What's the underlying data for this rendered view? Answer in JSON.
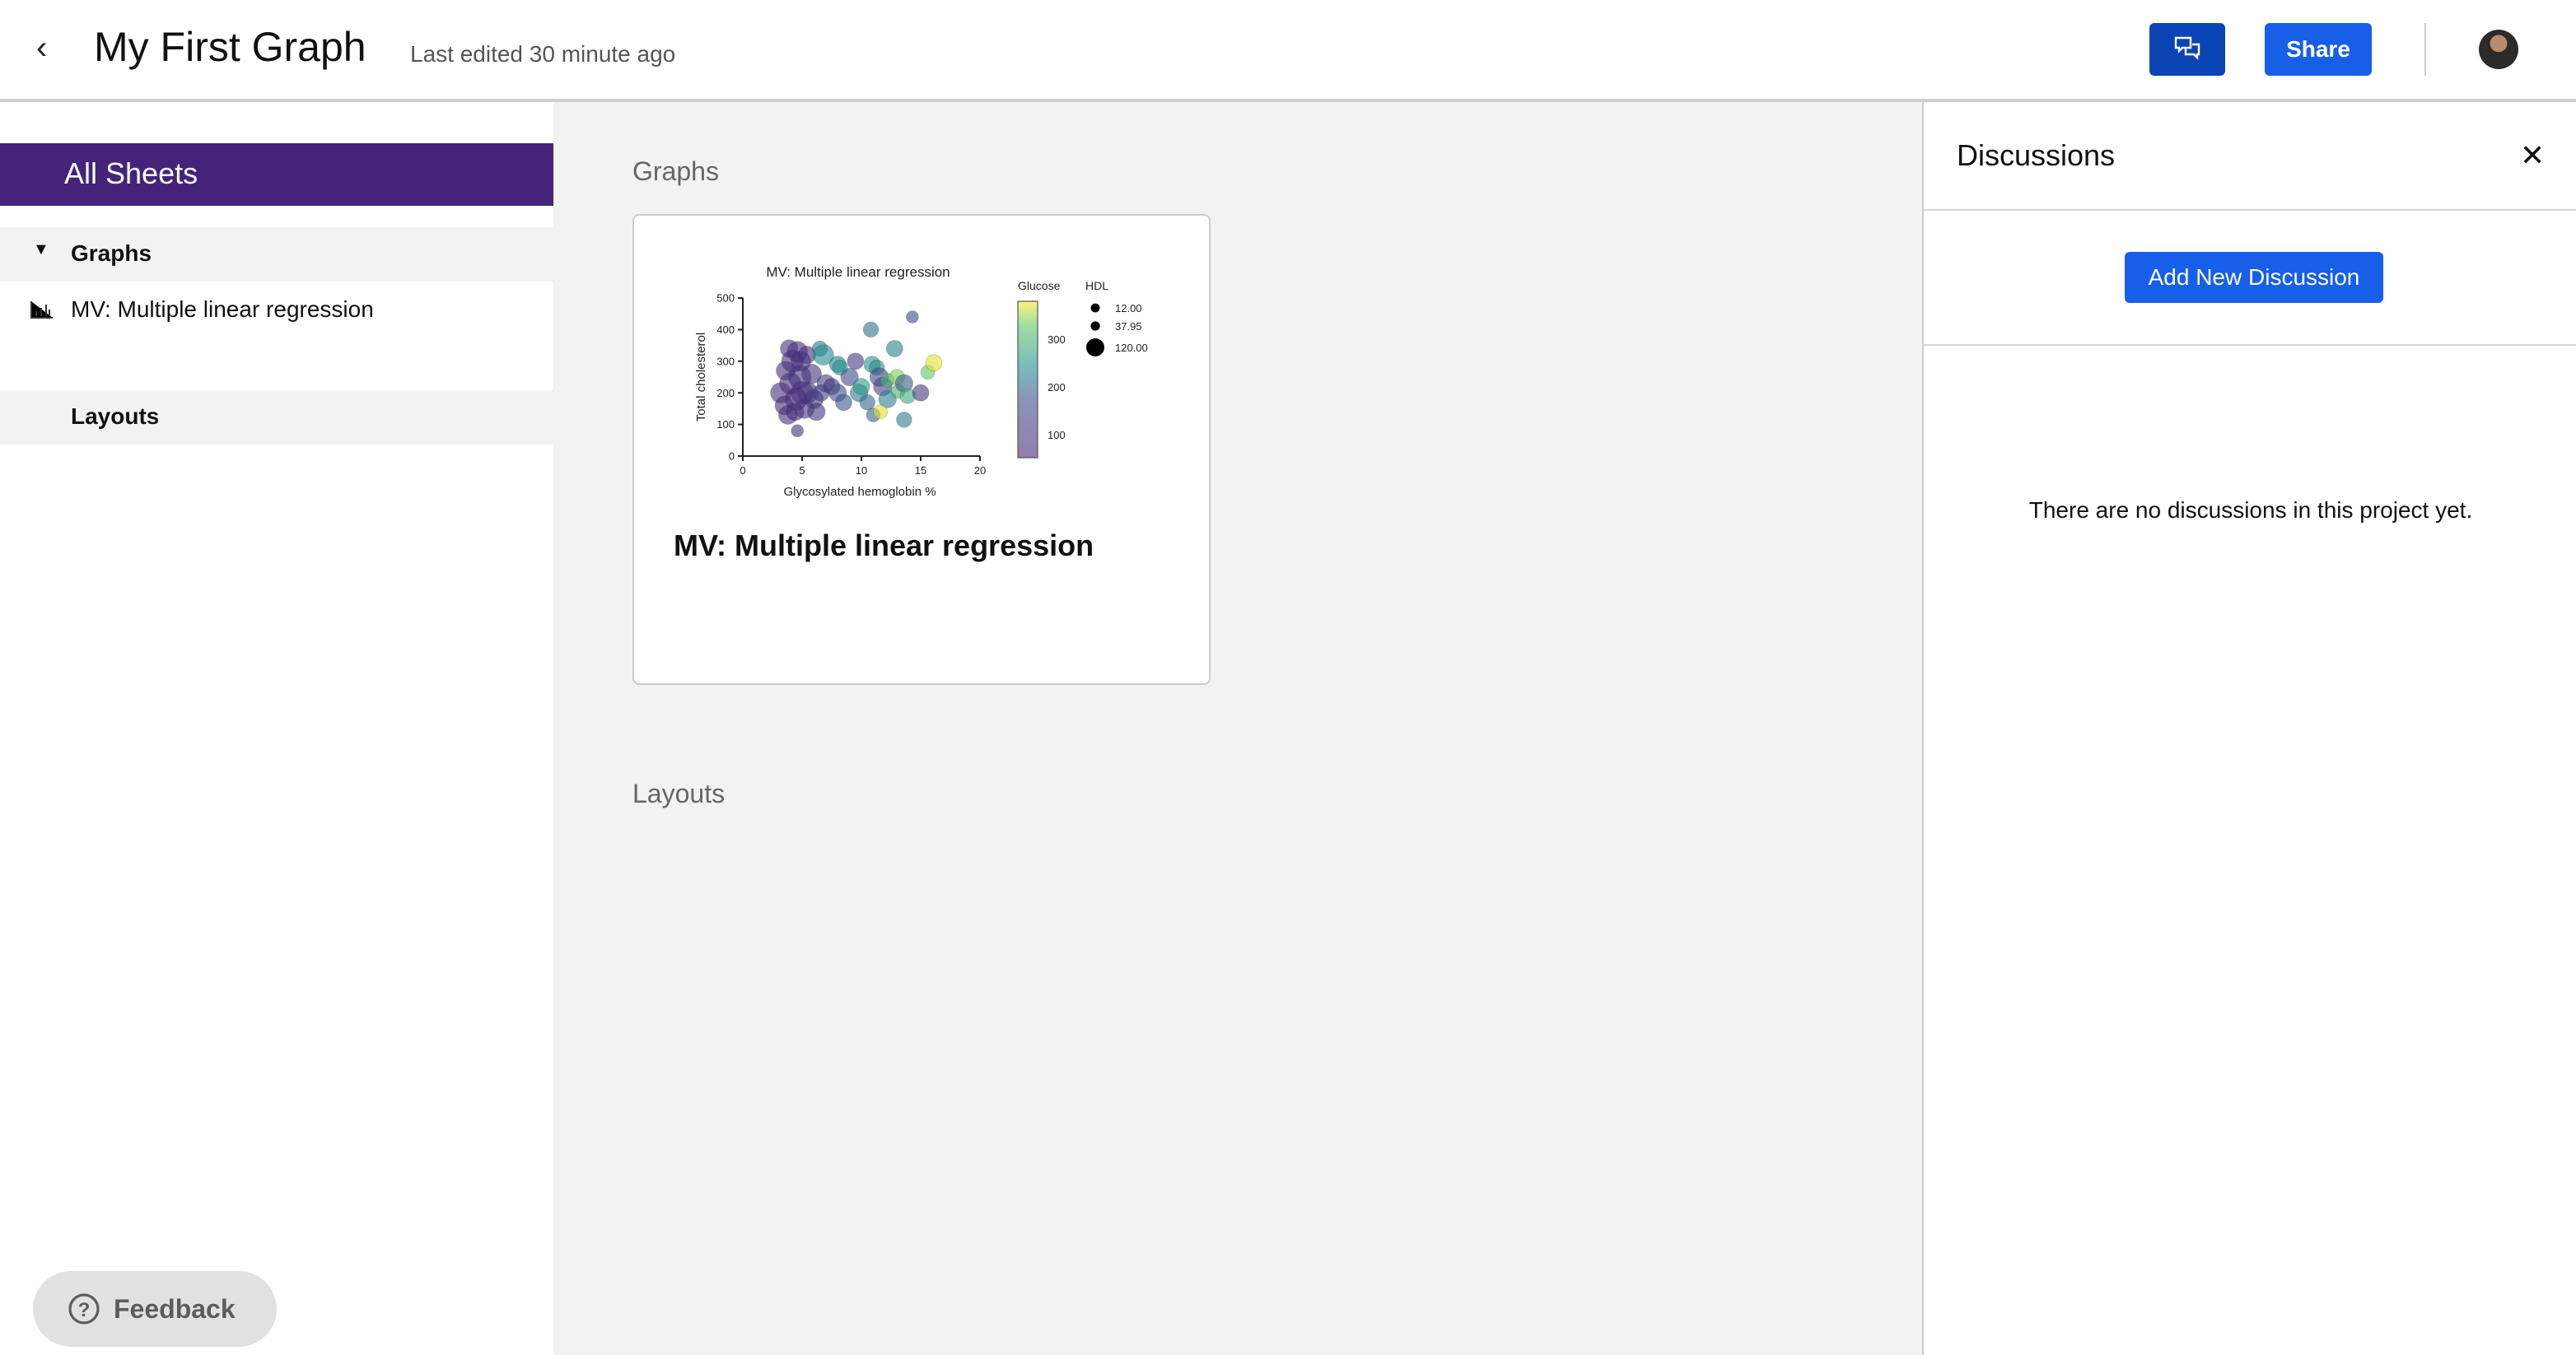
{
  "header": {
    "back_icon": "chevron-left-icon",
    "title": "My First Graph",
    "last_edited": "Last edited 30 minute ago",
    "share_label": "Share",
    "chat_icon": "chat-bubbles-icon",
    "brand_color": "#175fe9"
  },
  "sidebar": {
    "all_sheets": "All Sheets",
    "accent": "#46237a",
    "groups": [
      {
        "label": "Graphs",
        "items": [
          {
            "label": "MV: Multiple linear regression"
          }
        ]
      },
      {
        "label": "Layouts",
        "items": []
      }
    ],
    "feedback_label": "Feedback"
  },
  "main": {
    "graphs_heading": "Graphs",
    "layouts_heading": "Layouts",
    "card": {
      "title": "MV: Multiple linear regression",
      "thumbnail": {
        "title": "MV: Multiple linear regression",
        "xlabel": "Glycosylated hemoglobin %",
        "ylabel": "Total cholesterol",
        "xticks": [
          "0",
          "5",
          "10",
          "15",
          "20"
        ],
        "yticks": [
          "0",
          "100",
          "200",
          "300",
          "400",
          "500"
        ],
        "xlim": [
          0,
          20
        ],
        "ylim": [
          0,
          500
        ],
        "color_label": "Glucose",
        "color_ticks": [
          "100",
          "200",
          "300"
        ],
        "color_range": [
          52,
          379
        ],
        "size_label": "HDL",
        "size_legend": [
          "12.00",
          "37.95",
          "120.00"
        ],
        "points": [
          [
            4.6,
            80,
            80,
            20
          ],
          [
            3.2,
            200,
            70,
            90
          ],
          [
            3.5,
            160,
            75,
            70
          ],
          [
            4.0,
            230,
            80,
            100
          ],
          [
            4.2,
            300,
            70,
            110
          ],
          [
            4.6,
            330,
            75,
            90
          ],
          [
            4.8,
            250,
            85,
            120
          ],
          [
            5.0,
            200,
            70,
            120
          ],
          [
            4.5,
            180,
            65,
            110
          ],
          [
            3.8,
            130,
            80,
            70
          ],
          [
            4.4,
            140,
            70,
            60
          ],
          [
            5.2,
            150,
            90,
            80
          ],
          [
            5.5,
            200,
            100,
            90
          ],
          [
            5.8,
            260,
            85,
            80
          ],
          [
            6.0,
            180,
            95,
            70
          ],
          [
            3.6,
            270,
            80,
            70
          ],
          [
            4.9,
            300,
            75,
            80
          ],
          [
            5.4,
            320,
            90,
            60
          ],
          [
            3.9,
            340,
            85,
            60
          ],
          [
            6.2,
            140,
            100,
            60
          ],
          [
            6.6,
            200,
            130,
            50
          ],
          [
            7.0,
            230,
            120,
            60
          ],
          [
            7.5,
            220,
            110,
            50
          ],
          [
            8.0,
            200,
            170,
            60
          ],
          [
            8.5,
            170,
            180,
            50
          ],
          [
            6.5,
            340,
            220,
            40
          ],
          [
            6.8,
            320,
            240,
            90
          ],
          [
            8.0,
            290,
            230,
            50
          ],
          [
            8.2,
            280,
            250,
            40
          ],
          [
            9.0,
            250,
            170,
            60
          ],
          [
            9.5,
            300,
            110,
            50
          ],
          [
            9.8,
            200,
            220,
            60
          ],
          [
            10.0,
            220,
            260,
            50
          ],
          [
            10.5,
            170,
            200,
            40
          ],
          [
            10.8,
            400,
            210,
            40
          ],
          [
            10.9,
            290,
            250,
            50
          ],
          [
            11.3,
            280,
            240,
            40
          ],
          [
            11.5,
            250,
            160,
            70
          ],
          [
            11.8,
            220,
            140,
            70
          ],
          [
            12.2,
            180,
            230,
            60
          ],
          [
            11.0,
            130,
            200,
            30
          ],
          [
            11.6,
            140,
            370,
            30
          ],
          [
            12.2,
            240,
            300,
            30
          ],
          [
            12.8,
            340,
            230,
            50
          ],
          [
            13.0,
            250,
            340,
            40
          ],
          [
            13.1,
            205,
            300,
            30
          ],
          [
            13.6,
            230,
            190,
            60
          ],
          [
            13.6,
            115,
            220,
            40
          ],
          [
            13.9,
            190,
            290,
            40
          ],
          [
            14.3,
            440,
            170,
            20
          ],
          [
            15.0,
            200,
            110,
            50
          ],
          [
            15.6,
            265,
            330,
            30
          ],
          [
            16.1,
            295,
            370,
            50
          ]
        ]
      }
    }
  },
  "discussions": {
    "title": "Discussions",
    "close_icon": "close-icon",
    "add_label": "Add New Discussion",
    "empty_text": "There are no discussions in this project yet."
  }
}
